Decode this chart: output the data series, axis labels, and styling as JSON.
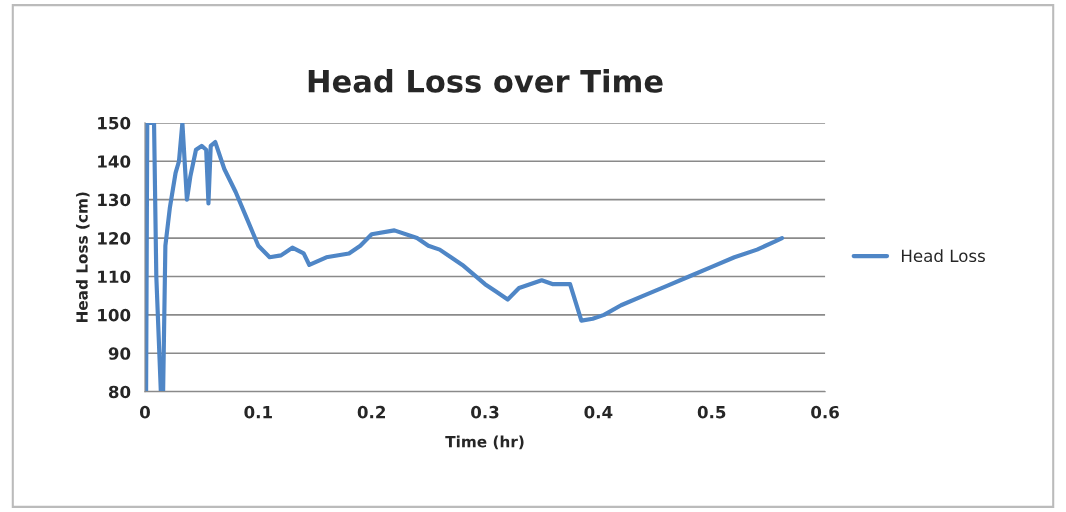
{
  "chart_data": {
    "type": "line",
    "title": "Head Loss over Time",
    "xlabel": "Time (hr)",
    "ylabel": "Head Loss (cm)",
    "xlim": [
      0,
      0.6
    ],
    "xticks": [
      0,
      0.1,
      0.2,
      0.3,
      0.4,
      0.5,
      0.6
    ],
    "ylim": [
      80,
      150
    ],
    "yticks": [
      80,
      90,
      100,
      110,
      120,
      130,
      140,
      150
    ],
    "grid": "y",
    "legend": "right",
    "marker": "none",
    "line_style": "solid",
    "series": [
      {
        "name": "Head Loss",
        "color": "#4f86c6",
        "x": [
          0.001,
          0.002,
          0.008,
          0.01,
          0.014,
          0.016,
          0.018,
          0.022,
          0.027,
          0.03,
          0.033,
          0.035,
          0.037,
          0.04,
          0.045,
          0.05,
          0.054,
          0.056,
          0.058,
          0.062,
          0.07,
          0.08,
          0.09,
          0.1,
          0.11,
          0.12,
          0.13,
          0.14,
          0.145,
          0.16,
          0.18,
          0.19,
          0.2,
          0.22,
          0.24,
          0.25,
          0.26,
          0.28,
          0.3,
          0.31,
          0.32,
          0.33,
          0.35,
          0.36,
          0.375,
          0.385,
          0.395,
          0.405,
          0.42,
          0.44,
          0.46,
          0.48,
          0.5,
          0.52,
          0.54,
          0.555,
          0.562
        ],
        "values": [
          80,
          150,
          150,
          110,
          80,
          80,
          118,
          128,
          137,
          140,
          150,
          140,
          130,
          136,
          143,
          144,
          143,
          129,
          144,
          145,
          138,
          132,
          125,
          118,
          115,
          115.5,
          117.5,
          116,
          113,
          115,
          116,
          118,
          121,
          122,
          120,
          118,
          117,
          113,
          108,
          106,
          104,
          107,
          109,
          108,
          108,
          98.5,
          99,
          100,
          102.5,
          105,
          107.5,
          110,
          112.5,
          115,
          117,
          119,
          120
        ]
      }
    ]
  }
}
